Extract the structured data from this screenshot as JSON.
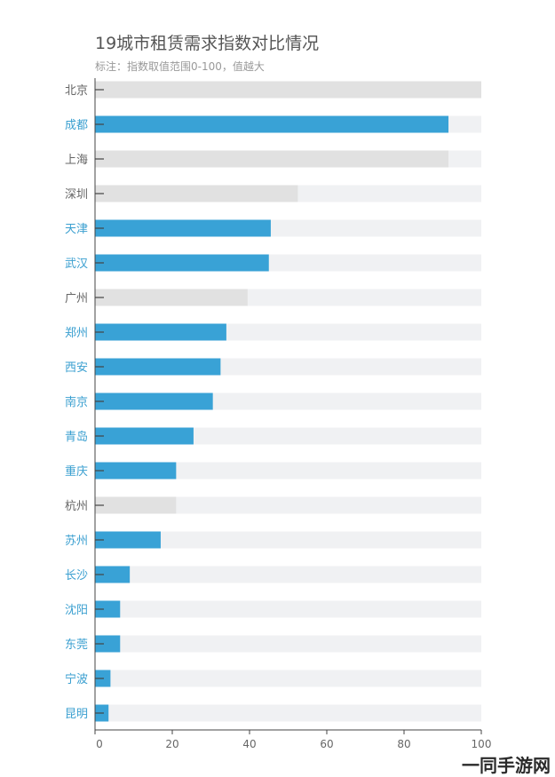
{
  "title": "19城市租赁需求指数对比情况",
  "subtitle": "标注：指数取值范围0-100，值越大",
  "watermark": "一同手游网",
  "colors": {
    "highlight": "#39A2D6",
    "gray_bar": "#E1E1E1",
    "track": "#F0F1F3",
    "label_gray": "#666666",
    "label_blue": "#3A9FD0",
    "axis": "#444444"
  },
  "chart_data": {
    "type": "bar",
    "orientation": "horizontal",
    "categories": [
      "北京",
      "成都",
      "上海",
      "深圳",
      "天津",
      "武汉",
      "广州",
      "郑州",
      "西安",
      "南京",
      "青岛",
      "重庆",
      "杭州",
      "苏州",
      "长沙",
      "沈阳",
      "东莞",
      "宁波",
      "昆明"
    ],
    "values": [
      100,
      91.5,
      91.5,
      52.5,
      45.5,
      45,
      39.5,
      34,
      32.5,
      30.5,
      25.5,
      21,
      21,
      17,
      9,
      6.5,
      6.5,
      4,
      3.5
    ],
    "highlighted": [
      false,
      true,
      false,
      false,
      true,
      true,
      false,
      true,
      true,
      true,
      true,
      true,
      false,
      true,
      true,
      true,
      true,
      true,
      true
    ],
    "xlim": [
      0,
      100
    ],
    "xticks": [
      0,
      20,
      40,
      60,
      80,
      100
    ],
    "grid": false,
    "legend": "none"
  }
}
